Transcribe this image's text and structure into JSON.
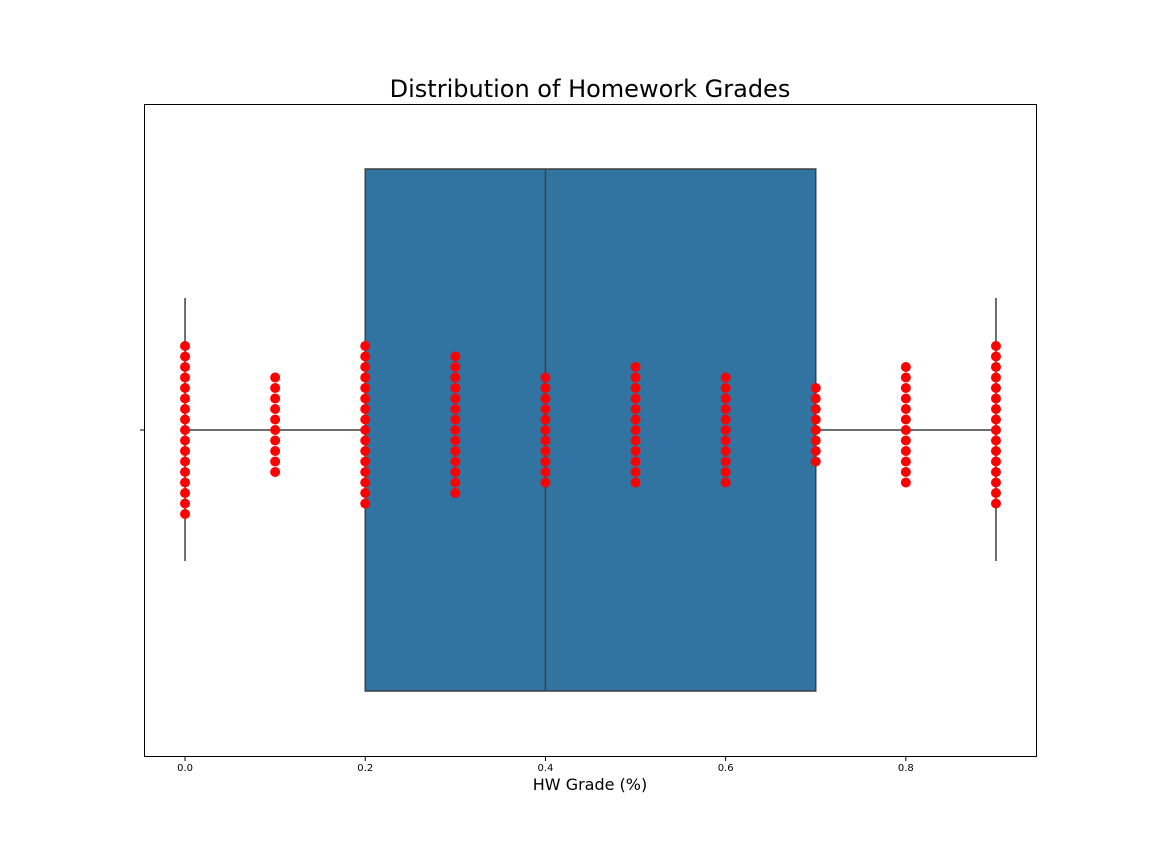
{
  "chart_data": {
    "type": "box",
    "title": "Distribution of Homework Grades",
    "xlabel": "HW Grade (%)",
    "ylabel": "",
    "xlim": [
      -0.045,
      0.945
    ],
    "xticks": [
      0.0,
      0.2,
      0.4,
      0.6,
      0.8
    ],
    "xtick_labels": [
      "0.0",
      "0.2",
      "0.4",
      "0.6",
      "0.8"
    ],
    "grid": false,
    "box": {
      "color": "#3274a1",
      "edge_color": "#3f3f3f",
      "whisker_low": 0.0,
      "q1": 0.2,
      "median": 0.4,
      "q3": 0.7,
      "whisker_high": 0.9
    },
    "points": {
      "type": "swarm",
      "color": "#ff0000",
      "groups": [
        {
          "x": 0.0,
          "count": 17
        },
        {
          "x": 0.1,
          "count": 10
        },
        {
          "x": 0.2,
          "count": 16
        },
        {
          "x": 0.3,
          "count": 14
        },
        {
          "x": 0.4,
          "count": 11
        },
        {
          "x": 0.5,
          "count": 12
        },
        {
          "x": 0.6,
          "count": 11
        },
        {
          "x": 0.7,
          "count": 8
        },
        {
          "x": 0.8,
          "count": 12
        },
        {
          "x": 0.9,
          "count": 16
        }
      ]
    }
  }
}
